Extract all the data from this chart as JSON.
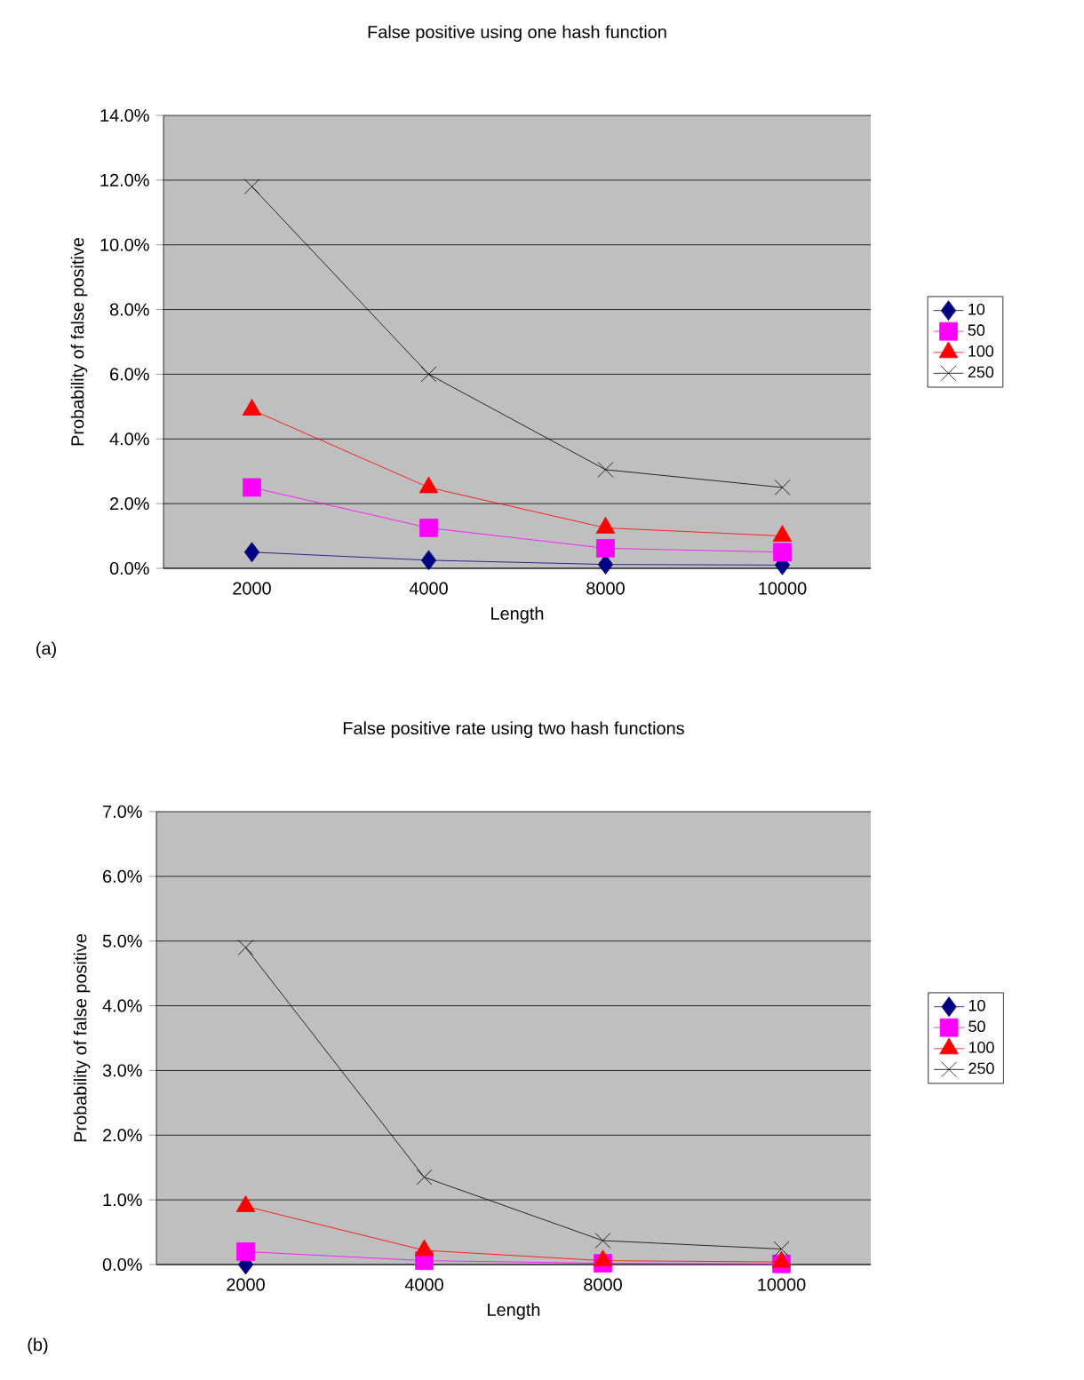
{
  "chart_data": [
    {
      "type": "line",
      "title": "False positive using one hash function",
      "xlabel": "Length",
      "ylabel": "Probability of false positive",
      "categories": [
        "2000",
        "4000",
        "8000",
        "10000"
      ],
      "series": [
        {
          "name": "10",
          "color": "#000080",
          "marker": "diamond",
          "values": [
            0.5,
            0.25,
            0.12,
            0.1
          ]
        },
        {
          "name": "50",
          "color": "#ff00ff",
          "marker": "square",
          "values": [
            2.5,
            1.25,
            0.62,
            0.5
          ]
        },
        {
          "name": "100",
          "color": "#ff0000",
          "marker": "triangle",
          "values": [
            4.9,
            2.5,
            1.25,
            1.0
          ]
        },
        {
          "name": "250",
          "color": "#000000",
          "marker": "cross",
          "values": [
            11.8,
            6.0,
            3.05,
            2.5
          ]
        }
      ],
      "ylim": [
        0,
        14
      ],
      "yticks": [
        {
          "value": 0,
          "label": "0.0%"
        },
        {
          "value": 2,
          "label": "2.0%"
        },
        {
          "value": 4,
          "label": "4.0%"
        },
        {
          "value": 6,
          "label": "6.0%"
        },
        {
          "value": 8,
          "label": "8.0%"
        },
        {
          "value": 10,
          "label": "10.0%"
        },
        {
          "value": 12,
          "label": "12.0%"
        },
        {
          "value": 14,
          "label": "14.0%"
        }
      ],
      "grid": "y",
      "legend": "right",
      "annotations": [
        "(a)"
      ]
    },
    {
      "type": "line",
      "title": "False positive rate using two hash functions",
      "xlabel": "Length",
      "ylabel": "Probability of false positive",
      "categories": [
        "2000",
        "4000",
        "8000",
        "10000"
      ],
      "series": [
        {
          "name": "10",
          "color": "#000080",
          "marker": "diamond",
          "values": [
            0.0,
            null,
            null,
            null
          ]
        },
        {
          "name": "50",
          "color": "#ff00ff",
          "marker": "square",
          "values": [
            0.2,
            0.06,
            0.02,
            0.01
          ]
        },
        {
          "name": "100",
          "color": "#ff0000",
          "marker": "triangle",
          "values": [
            0.9,
            0.22,
            0.06,
            0.04
          ]
        },
        {
          "name": "250",
          "color": "#000000",
          "marker": "cross",
          "values": [
            4.9,
            1.35,
            0.37,
            0.24
          ]
        }
      ],
      "ylim": [
        0,
        7
      ],
      "yticks": [
        {
          "value": 0,
          "label": "0.0%"
        },
        {
          "value": 1,
          "label": "1.0%"
        },
        {
          "value": 2,
          "label": "2.0%"
        },
        {
          "value": 3,
          "label": "3.0%"
        },
        {
          "value": 4,
          "label": "4.0%"
        },
        {
          "value": 5,
          "label": "5.0%"
        },
        {
          "value": 6,
          "label": "6.0%"
        },
        {
          "value": 7,
          "label": "7.0%"
        }
      ],
      "grid": "y",
      "legend": "right",
      "annotations": [
        "(b)"
      ]
    }
  ]
}
